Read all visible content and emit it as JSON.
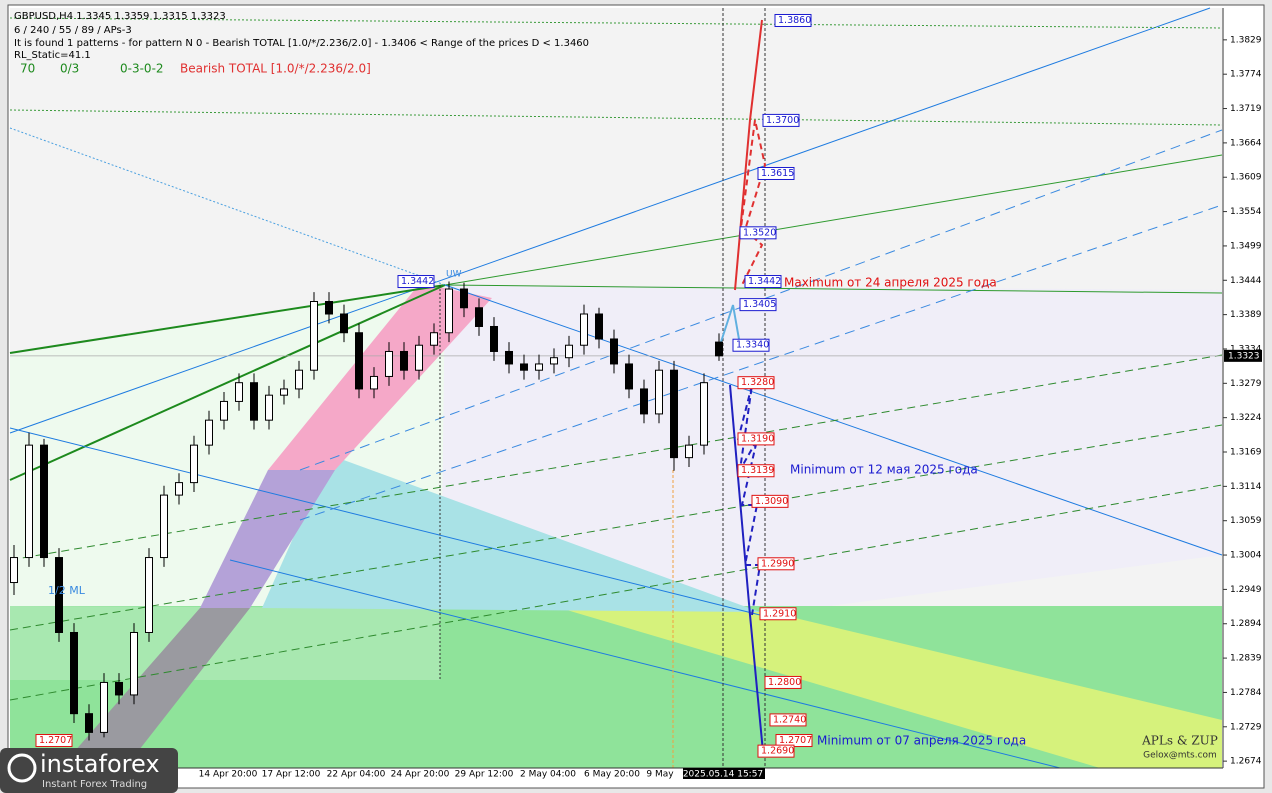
{
  "header": {
    "line1": "GBPUSD,H4  1.3345 1.3359 1.3315 1.3323",
    "line2": "6 / 240 / 55 / 89 / APs-3",
    "line3": "It is found 1 patterns  -  for pattern N 0 - Bearish TOTAL [1.0/*/2.236/2.0] - 1.3406 < Range of the prices D < 1.3460",
    "line4": "RL_Static=41.1",
    "stats": [
      "70",
      "0/3",
      "0-3-0-2"
    ],
    "pattern": "Bearish TOTAL [1.0/*/2.236/2.0]"
  },
  "chart_data": {
    "type": "candlestick",
    "ylim": [
      1.2663,
      1.388
    ],
    "yticks": [
      1.3829,
      1.3774,
      1.3719,
      1.3664,
      1.3609,
      1.3554,
      1.3499,
      1.3444,
      1.3389,
      1.3334,
      1.3279,
      1.3224,
      1.3169,
      1.3114,
      1.3059,
      1.3004,
      1.2949,
      1.2894,
      1.2839,
      1.2784,
      1.2729,
      1.2674
    ],
    "current_price": 1.3323,
    "x_labels": [
      "14 Apr 20:00",
      "17 Apr 12:00",
      "22 Apr 04:00",
      "24 Apr 20:00",
      "29 Apr 12:00",
      "2 May 04:00",
      "6 May 20:00",
      "9 May",
      "2025.05.14 15:57"
    ],
    "open": [
      1.296,
      1.3,
      1.318,
      1.3,
      1.288,
      1.275,
      1.272,
      1.28,
      1.278,
      1.288,
      1.3,
      1.31,
      1.312,
      1.318,
      1.322,
      1.325,
      1.328,
      1.322,
      1.326,
      1.327,
      1.33,
      1.341,
      1.339,
      1.336,
      1.327,
      1.329,
      1.333,
      1.33,
      1.334,
      1.336,
      1.343,
      1.34,
      1.337,
      1.333,
      1.331,
      1.33,
      1.331,
      1.332,
      1.334,
      1.339,
      1.335,
      1.331,
      1.327,
      1.323,
      1.33,
      1.316,
      1.318,
      1.3345
    ],
    "high": [
      1.302,
      1.32,
      1.319,
      1.3015,
      1.2895,
      1.2765,
      1.2815,
      1.2815,
      1.2895,
      1.3015,
      1.3115,
      1.3135,
      1.3195,
      1.3235,
      1.3265,
      1.3295,
      1.3295,
      1.3275,
      1.3285,
      1.3315,
      1.3425,
      1.3425,
      1.3405,
      1.3375,
      1.3305,
      1.3345,
      1.3345,
      1.3355,
      1.3375,
      1.3442,
      1.344,
      1.3415,
      1.3385,
      1.3345,
      1.3325,
      1.3325,
      1.3335,
      1.3355,
      1.3405,
      1.34,
      1.3365,
      1.3325,
      1.3285,
      1.3315,
      1.3315,
      1.3195,
      1.3295,
      1.3359
    ],
    "low": [
      1.294,
      1.2985,
      1.2985,
      1.2865,
      1.2735,
      1.2707,
      1.2712,
      1.2765,
      1.2765,
      1.2865,
      1.2985,
      1.3085,
      1.3105,
      1.3165,
      1.3205,
      1.3235,
      1.3205,
      1.3205,
      1.3245,
      1.3255,
      1.3285,
      1.3375,
      1.3345,
      1.3255,
      1.3255,
      1.3275,
      1.3285,
      1.3285,
      1.3325,
      1.3345,
      1.3385,
      1.3355,
      1.3315,
      1.3295,
      1.3285,
      1.3285,
      1.3295,
      1.3305,
      1.3325,
      1.3335,
      1.3295,
      1.3255,
      1.3215,
      1.3215,
      1.3139,
      1.3145,
      1.3165,
      1.3315
    ],
    "close": [
      1.3,
      1.318,
      1.3,
      1.288,
      1.275,
      1.272,
      1.28,
      1.278,
      1.288,
      1.3,
      1.31,
      1.312,
      1.318,
      1.322,
      1.325,
      1.328,
      1.322,
      1.326,
      1.327,
      1.33,
      1.341,
      1.339,
      1.336,
      1.327,
      1.329,
      1.333,
      1.33,
      1.334,
      1.336,
      1.343,
      1.34,
      1.337,
      1.333,
      1.331,
      1.33,
      1.331,
      1.332,
      1.334,
      1.339,
      1.335,
      1.331,
      1.327,
      1.323,
      1.33,
      1.316,
      1.318,
      1.328,
      1.3323
    ],
    "levels": [
      {
        "value": 1.386,
        "label": "1.3860"
      },
      {
        "value": 1.37,
        "label": "1.3700"
      },
      {
        "value": 1.3615,
        "label": "1.3615"
      },
      {
        "value": 1.352,
        "label": "1.3520"
      },
      {
        "value": 1.3442,
        "label": "1.3442"
      },
      {
        "value": 1.3405,
        "label": "1.3405"
      },
      {
        "value": 1.334,
        "label": "1.3340"
      },
      {
        "value": 1.328,
        "label": "1.3280"
      },
      {
        "value": 1.319,
        "label": "1.3190"
      },
      {
        "value": 1.3139,
        "label": "1.3139"
      },
      {
        "value": 1.309,
        "label": "1.3090"
      },
      {
        "value": 1.299,
        "label": "1.2990"
      },
      {
        "value": 1.291,
        "label": "1.2910"
      },
      {
        "value": 1.28,
        "label": "1.2800"
      },
      {
        "value": 1.274,
        "label": "1.2740"
      },
      {
        "value": 1.2707,
        "label": "1.2707"
      },
      {
        "value": 1.269,
        "label": "1.2690"
      }
    ],
    "left_levels": [
      {
        "value": 1.3442,
        "label": "1.3442"
      },
      {
        "value": 1.2707,
        "label": "1.2707"
      }
    ],
    "annotations": [
      "Maximum от 24 апреля 2025 года",
      "Minimum от 12 мая 2025 года",
      "Minimum от 07 апреля 2025 года",
      "1/2 ML",
      "UW"
    ]
  },
  "footer": {
    "brand": "APLs & ZUP",
    "email": "Gelox@mts.com",
    "logo": "instaforex",
    "slogan": "Instant Forex Trading"
  }
}
